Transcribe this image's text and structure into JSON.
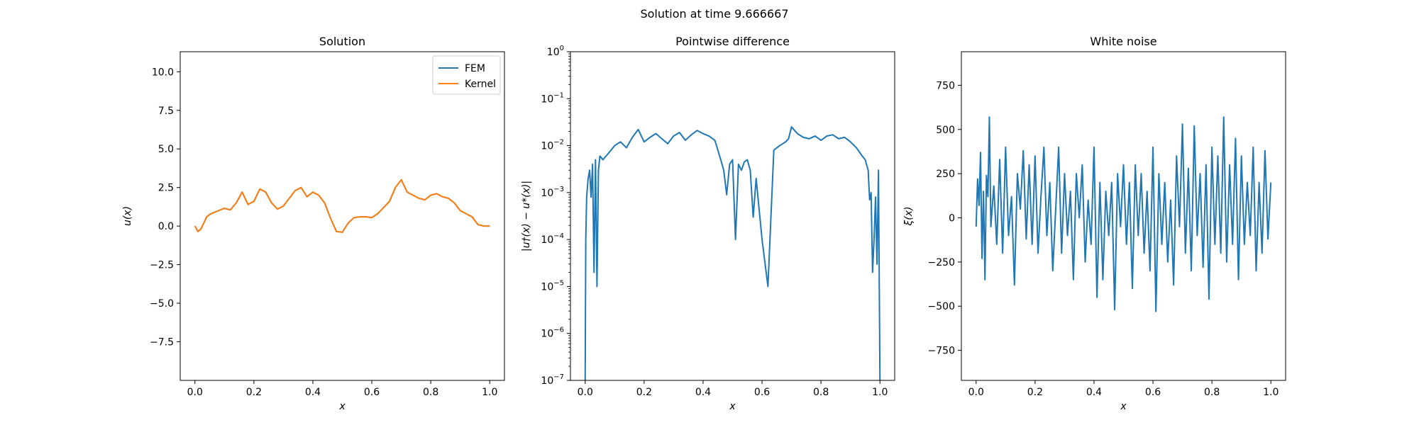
{
  "figure": {
    "suptitle": "Solution at time 9.666667"
  },
  "colors": {
    "fem": "#1f77b4",
    "kernel": "#ff7f0e",
    "noise": "#1f77b4",
    "diff": "#1f77b4"
  },
  "chart_data": [
    {
      "type": "line",
      "title": "Solution",
      "xlabel": "x",
      "ylabel": "u(x)",
      "xlim": [
        -0.05,
        1.05
      ],
      "ylim": [
        -10,
        11.3
      ],
      "xticks": [
        0.0,
        0.2,
        0.4,
        0.6,
        0.8,
        1.0
      ],
      "xtick_labels": [
        "0.0",
        "0.2",
        "0.4",
        "0.6",
        "0.8",
        "1.0"
      ],
      "yticks": [
        10.0,
        7.5,
        5.0,
        2.5,
        0.0,
        -2.5,
        -5.0,
        -7.5
      ],
      "ytick_labels": [
        "10.0",
        "7.5",
        "5.0",
        "2.5",
        "0.0",
        "−2.5",
        "−5.0",
        "−7.5"
      ],
      "grid": false,
      "legend": {
        "placement": "upper right",
        "entries": [
          "FEM",
          "Kernel"
        ]
      },
      "series": [
        {
          "name": "FEM",
          "x": [
            0.0,
            0.01,
            0.02,
            0.03,
            0.04,
            0.05,
            0.06,
            0.08,
            0.1,
            0.12,
            0.14,
            0.16,
            0.18,
            0.2,
            0.22,
            0.24,
            0.26,
            0.28,
            0.3,
            0.32,
            0.34,
            0.36,
            0.38,
            0.4,
            0.42,
            0.44,
            0.46,
            0.48,
            0.5,
            0.52,
            0.54,
            0.56,
            0.58,
            0.6,
            0.62,
            0.64,
            0.66,
            0.68,
            0.7,
            0.72,
            0.74,
            0.76,
            0.78,
            0.8,
            0.82,
            0.84,
            0.86,
            0.88,
            0.9,
            0.92,
            0.94,
            0.96,
            0.98,
            1.0
          ],
          "y": [
            0.0,
            -0.35,
            -0.2,
            0.2,
            0.6,
            0.75,
            0.85,
            1.0,
            1.15,
            1.05,
            1.5,
            2.2,
            1.4,
            1.6,
            2.4,
            2.2,
            1.5,
            1.1,
            1.3,
            1.8,
            2.3,
            2.5,
            1.9,
            2.2,
            2.0,
            1.5,
            0.5,
            -0.35,
            -0.4,
            0.2,
            0.55,
            0.6,
            0.6,
            0.55,
            0.8,
            1.2,
            1.6,
            2.5,
            3.0,
            2.2,
            2.0,
            1.8,
            1.7,
            2.0,
            2.1,
            1.9,
            1.8,
            1.5,
            1.0,
            0.8,
            0.6,
            0.1,
            0.0,
            0.0
          ]
        },
        {
          "name": "Kernel",
          "x": [
            0.0,
            0.01,
            0.02,
            0.03,
            0.04,
            0.05,
            0.06,
            0.08,
            0.1,
            0.12,
            0.14,
            0.16,
            0.18,
            0.2,
            0.22,
            0.24,
            0.26,
            0.28,
            0.3,
            0.32,
            0.34,
            0.36,
            0.38,
            0.4,
            0.42,
            0.44,
            0.46,
            0.48,
            0.5,
            0.52,
            0.54,
            0.56,
            0.58,
            0.6,
            0.62,
            0.64,
            0.66,
            0.68,
            0.7,
            0.72,
            0.74,
            0.76,
            0.78,
            0.8,
            0.82,
            0.84,
            0.86,
            0.88,
            0.9,
            0.92,
            0.94,
            0.96,
            0.98,
            1.0
          ],
          "y": [
            0.0,
            -0.35,
            -0.2,
            0.2,
            0.6,
            0.75,
            0.85,
            1.0,
            1.15,
            1.05,
            1.5,
            2.2,
            1.4,
            1.6,
            2.4,
            2.2,
            1.5,
            1.1,
            1.3,
            1.8,
            2.3,
            2.5,
            1.9,
            2.2,
            2.0,
            1.5,
            0.5,
            -0.35,
            -0.4,
            0.2,
            0.55,
            0.6,
            0.6,
            0.55,
            0.8,
            1.2,
            1.6,
            2.5,
            3.0,
            2.2,
            2.0,
            1.8,
            1.7,
            2.0,
            2.1,
            1.9,
            1.8,
            1.5,
            1.0,
            0.8,
            0.6,
            0.1,
            0.0,
            0.0
          ]
        }
      ]
    },
    {
      "type": "line",
      "title": "Pointwise difference",
      "xlabel": "x",
      "ylabel": "|u†(x) − u*(x)|",
      "yscale": "log",
      "xlim": [
        -0.05,
        1.05
      ],
      "ylim": [
        1e-07,
        1
      ],
      "xticks": [
        0.0,
        0.2,
        0.4,
        0.6,
        0.8,
        1.0
      ],
      "xtick_labels": [
        "0.0",
        "0.2",
        "0.4",
        "0.6",
        "0.8",
        "1.0"
      ],
      "yticks": [
        1,
        0.1,
        0.01,
        0.001,
        0.0001,
        1e-05,
        1e-06,
        1e-07
      ],
      "ytick_mantissa": "10",
      "ytick_exponents": [
        "0",
        "−1",
        "−2",
        "−3",
        "−4",
        "−5",
        "−6",
        "−7"
      ],
      "grid": false,
      "series": [
        {
          "x": [
            0.0,
            0.002,
            0.005,
            0.01,
            0.015,
            0.02,
            0.025,
            0.03,
            0.035,
            0.04,
            0.045,
            0.05,
            0.06,
            0.08,
            0.1,
            0.12,
            0.14,
            0.16,
            0.18,
            0.2,
            0.22,
            0.24,
            0.26,
            0.28,
            0.3,
            0.32,
            0.34,
            0.36,
            0.38,
            0.4,
            0.42,
            0.44,
            0.46,
            0.47,
            0.48,
            0.49,
            0.5,
            0.51,
            0.52,
            0.53,
            0.54,
            0.55,
            0.56,
            0.57,
            0.58,
            0.6,
            0.62,
            0.64,
            0.66,
            0.68,
            0.69,
            0.7,
            0.72,
            0.74,
            0.76,
            0.78,
            0.8,
            0.82,
            0.84,
            0.86,
            0.88,
            0.9,
            0.92,
            0.94,
            0.95,
            0.96,
            0.965,
            0.97,
            0.975,
            0.98,
            0.985,
            0.99,
            0.995,
            1.0
          ],
          "y": [
            1e-07,
            0.0001,
            0.0008,
            0.002,
            0.003,
            0.0008,
            0.004,
            2e-05,
            0.005,
            1e-05,
            0.003,
            0.006,
            0.005,
            0.007,
            0.01,
            0.012,
            0.009,
            0.015,
            0.022,
            0.012,
            0.015,
            0.018,
            0.014,
            0.011,
            0.016,
            0.019,
            0.013,
            0.017,
            0.021,
            0.018,
            0.016,
            0.013,
            0.005,
            0.003,
            0.0009,
            0.004,
            0.005,
            0.0001,
            0.004,
            0.003,
            0.0045,
            0.005,
            0.003,
            0.0003,
            0.002,
            0.0001,
            1e-05,
            0.008,
            0.01,
            0.012,
            0.014,
            0.025,
            0.018,
            0.015,
            0.014,
            0.016,
            0.013,
            0.016,
            0.017,
            0.014,
            0.015,
            0.012,
            0.009,
            0.006,
            0.005,
            0.003,
            0.0007,
            0.001,
            2e-05,
            0.0001,
            0.0008,
            3e-05,
            0.003,
            1e-07
          ]
        }
      ]
    },
    {
      "type": "line",
      "title": "White noise",
      "xlabel": "x",
      "ylabel": "ξ(x)",
      "xlim": [
        -0.05,
        1.05
      ],
      "ylim": [
        -920,
        940
      ],
      "xticks": [
        0.0,
        0.2,
        0.4,
        0.6,
        0.8,
        1.0
      ],
      "xtick_labels": [
        "0.0",
        "0.2",
        "0.4",
        "0.6",
        "0.8",
        "1.0"
      ],
      "yticks": [
        750,
        500,
        250,
        0,
        -250,
        -500,
        -750
      ],
      "ytick_labels": [
        "750",
        "500",
        "250",
        "0",
        "−250",
        "−500",
        "−750"
      ],
      "grid": false,
      "series": [
        {
          "x": [
            0.0,
            0.005,
            0.01,
            0.015,
            0.02,
            0.025,
            0.03,
            0.035,
            0.04,
            0.045,
            0.05,
            0.06,
            0.07,
            0.08,
            0.09,
            0.1,
            0.11,
            0.12,
            0.13,
            0.14,
            0.15,
            0.16,
            0.17,
            0.18,
            0.19,
            0.2,
            0.21,
            0.22,
            0.23,
            0.24,
            0.25,
            0.26,
            0.27,
            0.28,
            0.29,
            0.3,
            0.31,
            0.32,
            0.33,
            0.34,
            0.35,
            0.36,
            0.37,
            0.38,
            0.39,
            0.4,
            0.41,
            0.42,
            0.43,
            0.44,
            0.45,
            0.46,
            0.47,
            0.48,
            0.49,
            0.5,
            0.51,
            0.52,
            0.53,
            0.54,
            0.55,
            0.56,
            0.57,
            0.58,
            0.59,
            0.6,
            0.61,
            0.62,
            0.63,
            0.64,
            0.65,
            0.66,
            0.67,
            0.68,
            0.69,
            0.7,
            0.71,
            0.72,
            0.73,
            0.74,
            0.75,
            0.76,
            0.77,
            0.78,
            0.79,
            0.8,
            0.81,
            0.82,
            0.83,
            0.84,
            0.85,
            0.86,
            0.87,
            0.88,
            0.89,
            0.9,
            0.91,
            0.92,
            0.93,
            0.94,
            0.95,
            0.96,
            0.97,
            0.98,
            0.99,
            1.0
          ],
          "y": [
            -50,
            220,
            70,
            370,
            -230,
            150,
            -350,
            240,
            120,
            570,
            -50,
            180,
            -150,
            330,
            -200,
            400,
            -100,
            120,
            -380,
            250,
            50,
            380,
            -120,
            300,
            -150,
            350,
            -200,
            120,
            400,
            -100,
            200,
            -300,
            50,
            400,
            -200,
            250,
            -100,
            150,
            -350,
            250,
            0,
            300,
            -250,
            100,
            -150,
            400,
            -450,
            200,
            -350,
            150,
            -100,
            200,
            -520,
            250,
            -50,
            300,
            -150,
            200,
            -400,
            300,
            -100,
            250,
            -200,
            150,
            -300,
            400,
            -530,
            250,
            -150,
            200,
            -250,
            100,
            -380,
            350,
            -50,
            530,
            -200,
            280,
            -300,
            520,
            -100,
            250,
            -280,
            300,
            -460,
            400,
            -150,
            350,
            -200,
            570,
            -250,
            300,
            -150,
            450,
            -350,
            350,
            -150,
            200,
            -100,
            400,
            -300,
            200,
            -200,
            380,
            -120,
            200
          ]
        }
      ]
    }
  ]
}
